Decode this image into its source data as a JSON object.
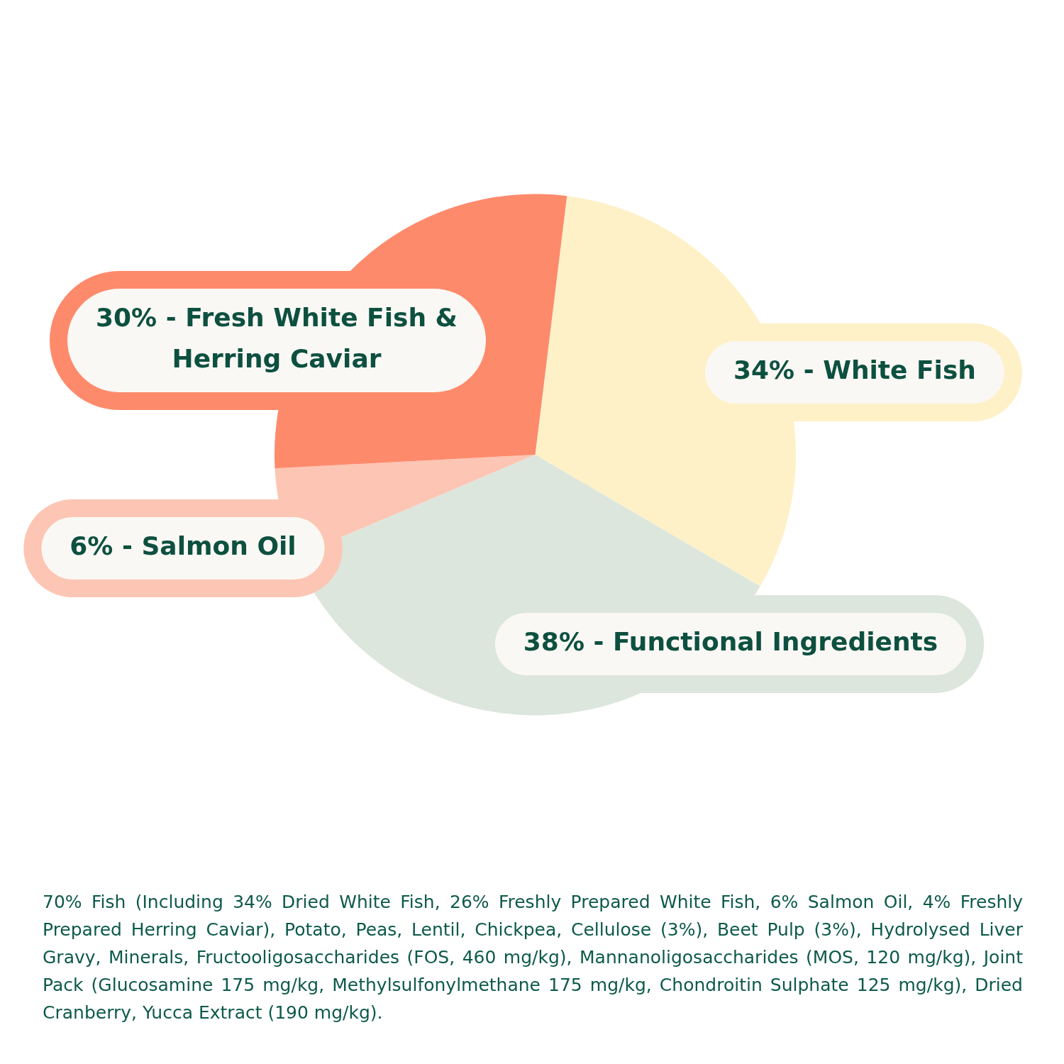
{
  "chart_data": {
    "type": "pie",
    "categories": [
      "34% - White Fish",
      "38% - Functional Ingredients",
      "6% - Salmon Oil",
      "30% - Fresh White Fish & Herring Caviar"
    ],
    "values": [
      34,
      38,
      6,
      30
    ],
    "colors": [
      "#fef1c8",
      "#dce6dc",
      "#fdc5b3",
      "#fe8a6c"
    ],
    "legend": false,
    "annotations": [
      "70% Fish (Including 34% Dried White Fish, 26% Freshly Prepared White Fish, 6% Salmon Oil, 4% Freshly Prepared Herring Caviar), Potato, Peas, Lentil, Chickpea, Cellulose (3%), Beet Pulp (3%), Hydrolysed Liver Gravy, Minerals, Fructooligosaccharides (FOS, 460 mg/kg), Mannanoligosaccharides (MOS, 120 mg/kg), Joint Pack (Glucosamine 175 mg/kg, Methylsulfonylmethane 175 mg/kg, Chondroitin Sulphate 125 mg/kg), Dried Cranberry, Yucca Extract (190 mg/kg)."
    ]
  }
}
